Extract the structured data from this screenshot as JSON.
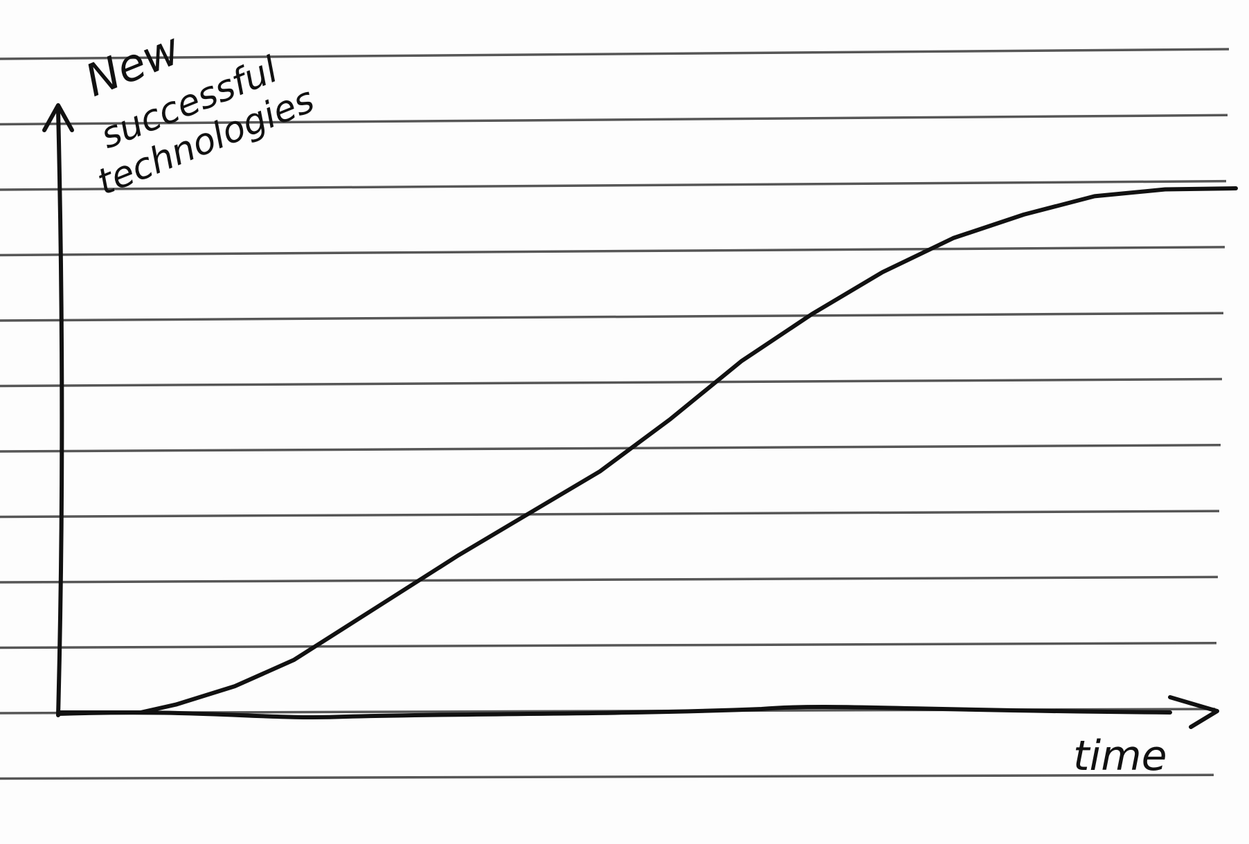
{
  "chart_data": {
    "type": "line",
    "title": "",
    "xlabel": "time",
    "ylabel": "New successful technologies",
    "ylabel_lines": [
      "New",
      "successful",
      "technologies"
    ],
    "xlim": [
      0,
      100
    ],
    "ylim": [
      0,
      100
    ],
    "grid": true,
    "legend": "none",
    "series": [
      {
        "x": [
          0,
          7,
          10,
          15,
          20,
          27,
          34,
          40,
          46,
          52,
          58,
          64,
          70,
          76,
          82,
          88,
          94,
          100
        ],
        "values": [
          0,
          0,
          1.5,
          5,
          10,
          20,
          30,
          38,
          46,
          56,
          67,
          76,
          84,
          90.5,
          95,
          98.5,
          99.8,
          100
        ]
      }
    ]
  },
  "colors": {
    "ink": "#111111",
    "ruled": "#3a3a3a",
    "paper": "#fdfdfd"
  }
}
